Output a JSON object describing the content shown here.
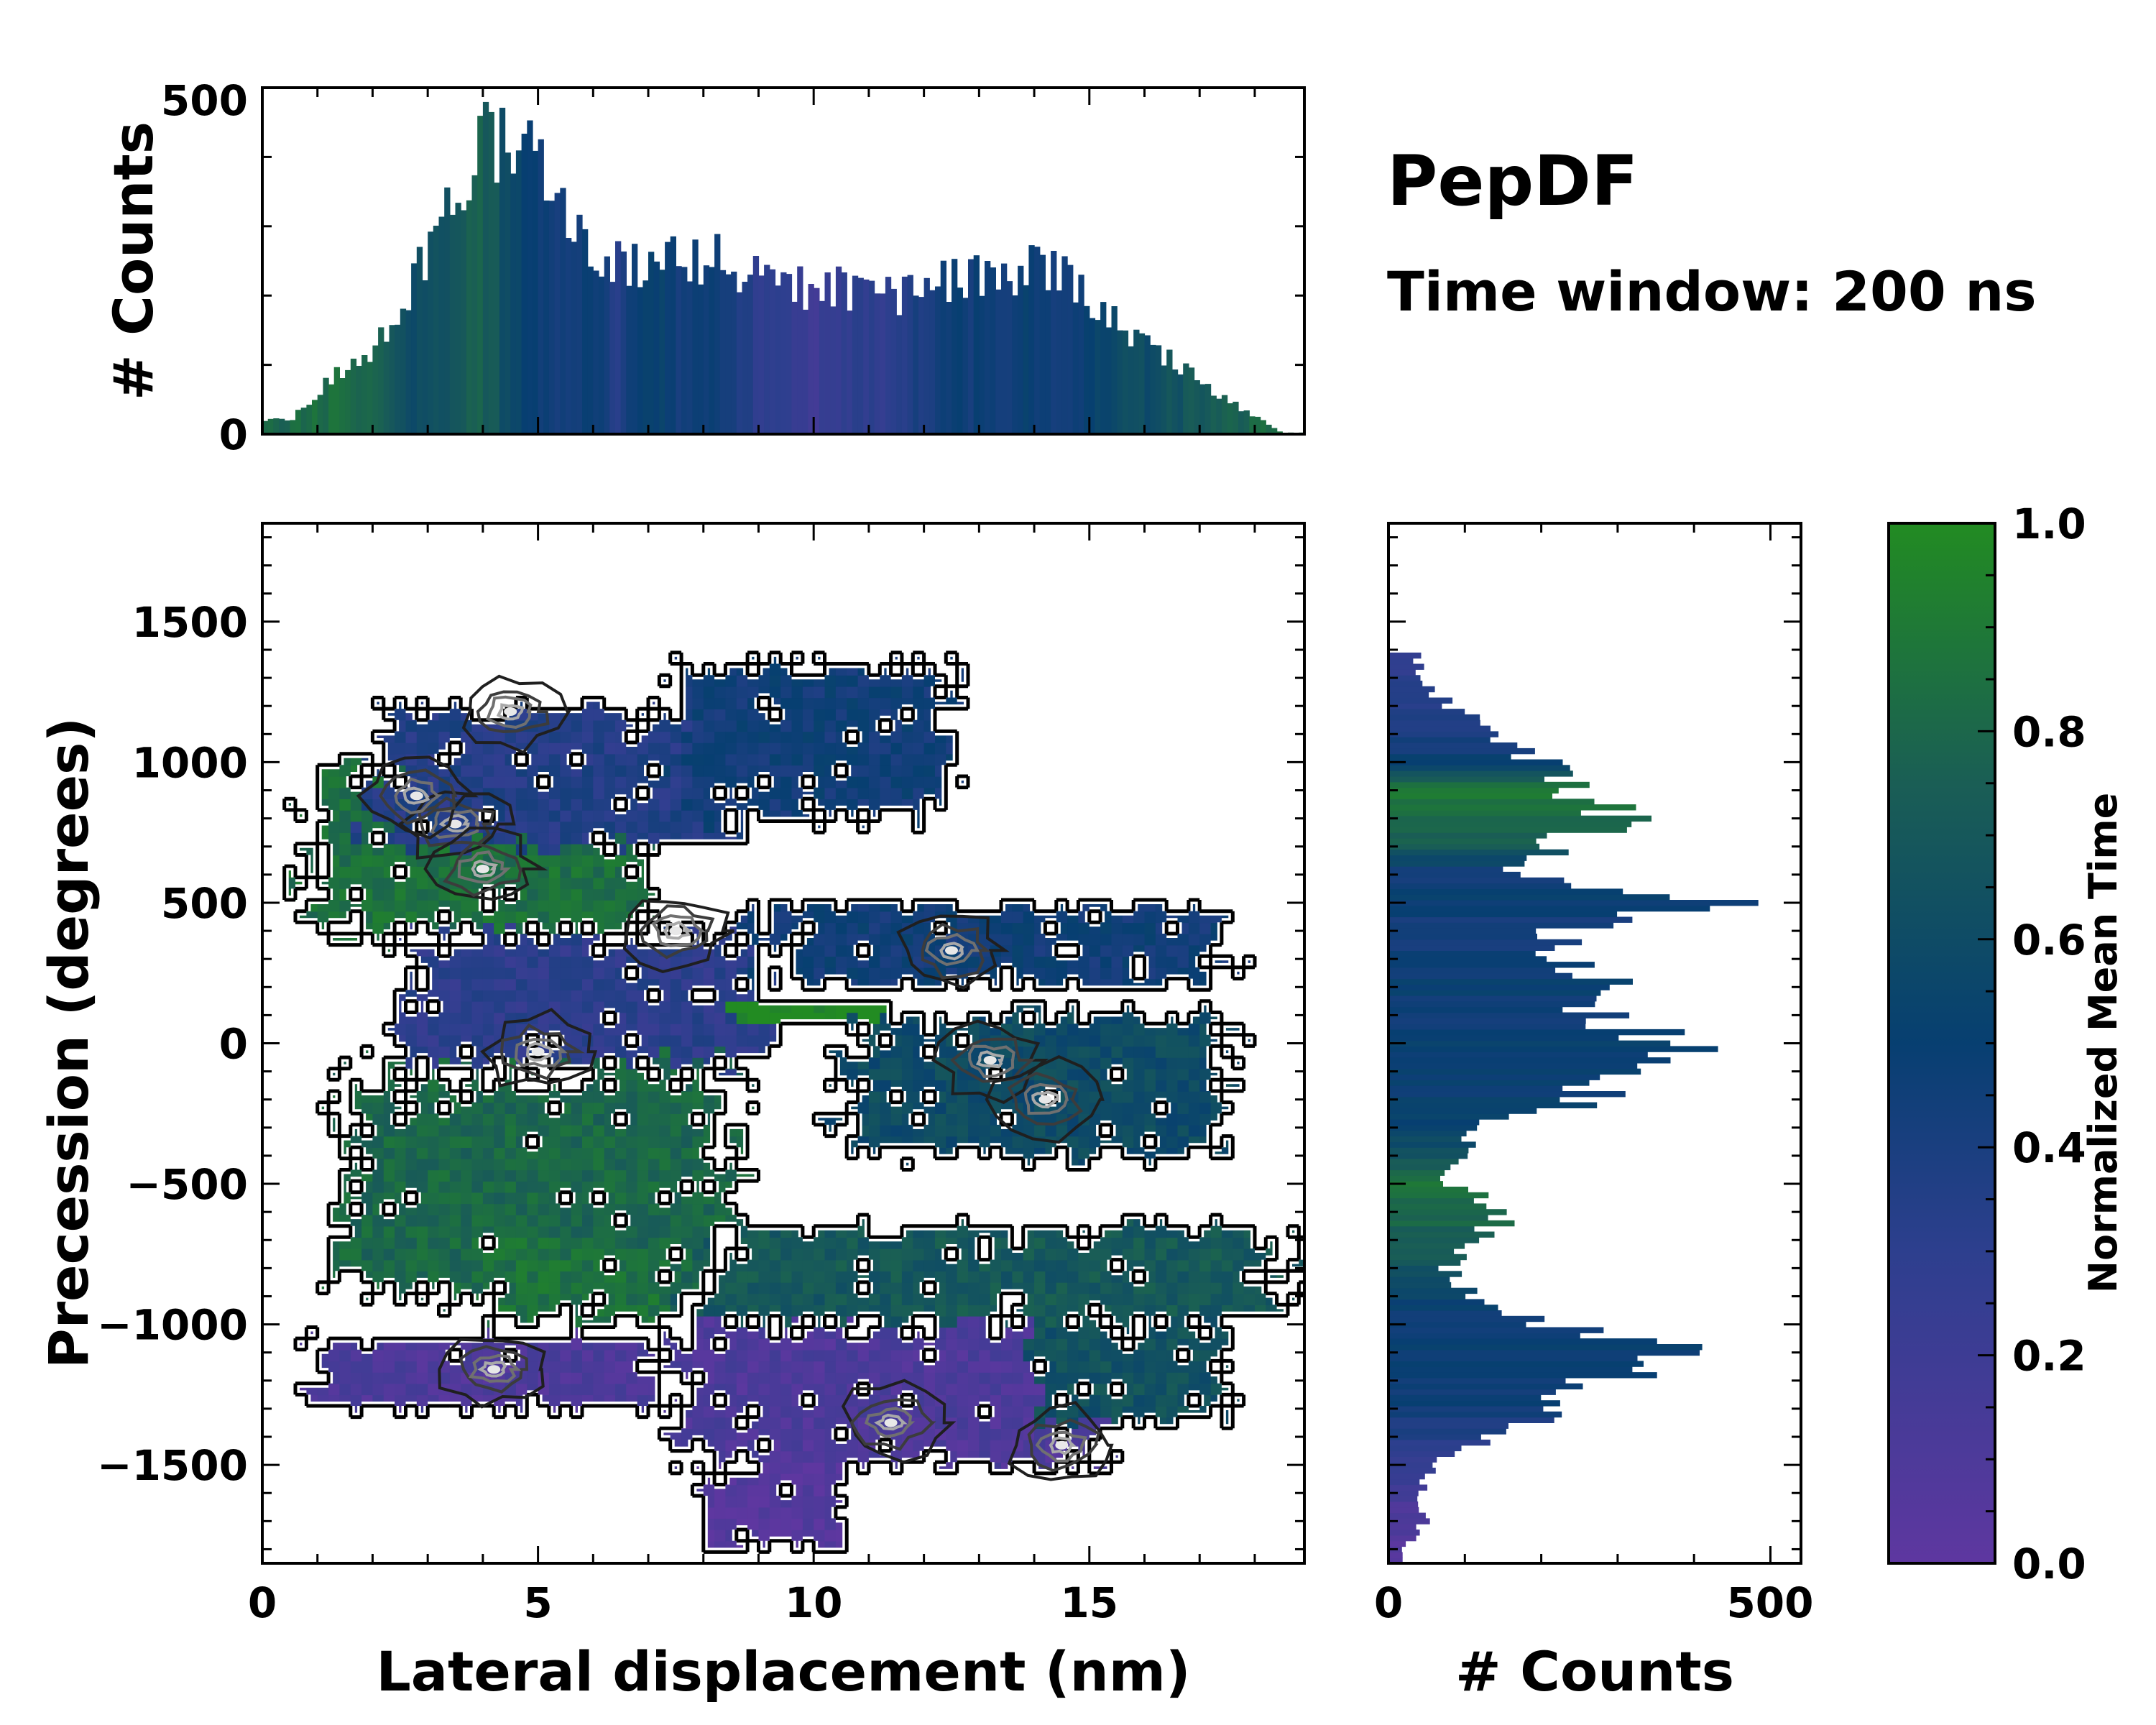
{
  "title": "PepDF",
  "subtitle": "Time window: 200 ns",
  "chart_data": [
    {
      "type": "heatmap",
      "name": "joint-distribution",
      "xlabel": "Lateral displacement (nm)",
      "ylabel": "Precession (degrees)",
      "xlim": [
        0,
        18.9
      ],
      "ylim": [
        -1850,
        1850
      ],
      "x_ticks": [
        0,
        5,
        10,
        15
      ],
      "x_tick_labels": [
        "0",
        "5",
        "10",
        "15"
      ],
      "y_ticks": [
        -1500,
        -1000,
        -500,
        0,
        500,
        1000,
        1500
      ],
      "y_tick_labels": [
        "−1500",
        "−1000",
        "−500",
        "0",
        "500",
        "1000",
        "1500"
      ],
      "color_value": "Normalized Mean Time",
      "regions": [
        {
          "x": [
            0.8,
            7.0
          ],
          "y": [
            380,
            1000
          ],
          "time": 0.85
        },
        {
          "x": [
            2.0,
            8.5
          ],
          "y": [
            700,
            1200
          ],
          "time": 0.35
        },
        {
          "x": [
            7.5,
            12.5
          ],
          "y": [
            800,
            1350
          ],
          "time": 0.45
        },
        {
          "x": [
            2.5,
            9.0
          ],
          "y": [
            -100,
            400
          ],
          "time": 0.3
        },
        {
          "x": [
            9.0,
            17.5
          ],
          "y": [
            200,
            500
          ],
          "time": 0.45
        },
        {
          "x": [
            8.5,
            11.5
          ],
          "y": [
            80,
            160
          ],
          "time": 1.0
        },
        {
          "x": [
            10.5,
            17.5
          ],
          "y": [
            -400,
            100
          ],
          "time": 0.6
        },
        {
          "x": [
            1.5,
            8.5
          ],
          "y": [
            -900,
            -100
          ],
          "time": 0.8
        },
        {
          "x": [
            4.0,
            7.5
          ],
          "y": [
            -1000,
            -700
          ],
          "time": 0.85
        },
        {
          "x": [
            8.0,
            18.5
          ],
          "y": [
            -1000,
            -650
          ],
          "time": 0.7
        },
        {
          "x": [
            1.0,
            7.5
          ],
          "y": [
            -1300,
            -1050
          ],
          "time": 0.1
        },
        {
          "x": [
            7.5,
            15.0
          ],
          "y": [
            -1500,
            -1000
          ],
          "time": 0.1
        },
        {
          "x": [
            14.0,
            17.5
          ],
          "y": [
            -1350,
            -1000
          ],
          "time": 0.65
        },
        {
          "x": [
            8.0,
            10.5
          ],
          "y": [
            -1800,
            -1500
          ],
          "time": 0.05
        }
      ],
      "hotspots": [
        {
          "x": 3.5,
          "y": 780
        },
        {
          "x": 4.0,
          "y": 620
        },
        {
          "x": 2.8,
          "y": 880
        },
        {
          "x": 7.5,
          "y": 400
        },
        {
          "x": 5.0,
          "y": -30
        },
        {
          "x": 13.2,
          "y": -60
        },
        {
          "x": 14.2,
          "y": -200
        },
        {
          "x": 12.5,
          "y": 330
        },
        {
          "x": 4.2,
          "y": -1160
        },
        {
          "x": 11.4,
          "y": -1350
        },
        {
          "x": 14.5,
          "y": -1430
        },
        {
          "x": 4.5,
          "y": 1180
        }
      ]
    },
    {
      "type": "bar",
      "name": "top-histogram",
      "ylabel": "# Counts",
      "ylim": [
        0,
        500
      ],
      "y_ticks": [
        0,
        500
      ],
      "y_tick_labels": [
        "0",
        "500"
      ],
      "bin_start": 0,
      "bin_width": 0.1,
      "x": [
        0.5,
        1.5,
        2.0,
        2.5,
        3.0,
        3.5,
        4.0,
        4.5,
        5.0,
        5.5,
        6.0,
        6.5,
        7.0,
        7.5,
        8.0,
        8.5,
        9.0,
        9.5,
        10.0,
        10.5,
        11.0,
        11.5,
        12.0,
        12.5,
        13.0,
        13.5,
        14.0,
        14.5,
        15.0,
        15.5,
        16.0,
        16.5,
        17.0,
        17.5,
        18.0,
        18.5
      ],
      "values": [
        20,
        100,
        120,
        180,
        260,
        330,
        420,
        440,
        430,
        330,
        270,
        250,
        250,
        260,
        250,
        250,
        220,
        220,
        200,
        210,
        200,
        200,
        210,
        220,
        230,
        220,
        240,
        240,
        200,
        160,
        130,
        110,
        80,
        50,
        25,
        2
      ],
      "time": [
        0.8,
        0.85,
        0.8,
        0.65,
        0.6,
        0.7,
        0.75,
        0.6,
        0.5,
        0.4,
        0.5,
        0.35,
        0.55,
        0.45,
        0.45,
        0.4,
        0.3,
        0.25,
        0.2,
        0.25,
        0.3,
        0.3,
        0.4,
        0.45,
        0.45,
        0.45,
        0.5,
        0.45,
        0.5,
        0.6,
        0.6,
        0.65,
        0.7,
        0.75,
        0.8,
        0.85
      ]
    },
    {
      "type": "bar",
      "orientation": "horizontal",
      "name": "right-histogram",
      "xlabel": "# Counts",
      "xlim": [
        0,
        540
      ],
      "x_ticks": [
        0,
        500
      ],
      "x_tick_labels": [
        "0",
        "500"
      ],
      "bin_start": -1850,
      "bin_width": 20,
      "y": [
        -1800,
        -1700,
        -1600,
        -1500,
        -1400,
        -1300,
        -1200,
        -1100,
        -1000,
        -900,
        -800,
        -700,
        -600,
        -500,
        -400,
        -300,
        -200,
        -100,
        0,
        100,
        200,
        300,
        400,
        500,
        600,
        700,
        800,
        900,
        1000,
        1100,
        1200,
        1300
      ],
      "values": [
        20,
        50,
        40,
        60,
        150,
        220,
        270,
        390,
        200,
        110,
        80,
        110,
        160,
        80,
        90,
        110,
        260,
        300,
        380,
        280,
        300,
        220,
        240,
        460,
        150,
        220,
        300,
        230,
        200,
        150,
        80,
        40
      ],
      "time": [
        0.05,
        0.1,
        0.15,
        0.25,
        0.35,
        0.45,
        0.45,
        0.5,
        0.45,
        0.55,
        0.65,
        0.75,
        0.8,
        0.85,
        0.65,
        0.55,
        0.5,
        0.5,
        0.5,
        0.45,
        0.5,
        0.45,
        0.4,
        0.5,
        0.4,
        0.75,
        0.8,
        0.9,
        0.5,
        0.4,
        0.35,
        0.3
      ]
    },
    {
      "type": "colorbar",
      "name": "colorbar",
      "label": "Normalized Mean Time",
      "range": [
        0.0,
        1.0
      ],
      "ticks": [
        0.0,
        0.2,
        0.4,
        0.6,
        0.8,
        1.0
      ],
      "tick_labels": [
        "0.0",
        "0.2",
        "0.4",
        "0.6",
        "0.8",
        "1.0"
      ],
      "colors": [
        "#5e37a0",
        "#2d3f8e",
        "#073f71",
        "#1a5e55",
        "#228b22"
      ]
    }
  ]
}
